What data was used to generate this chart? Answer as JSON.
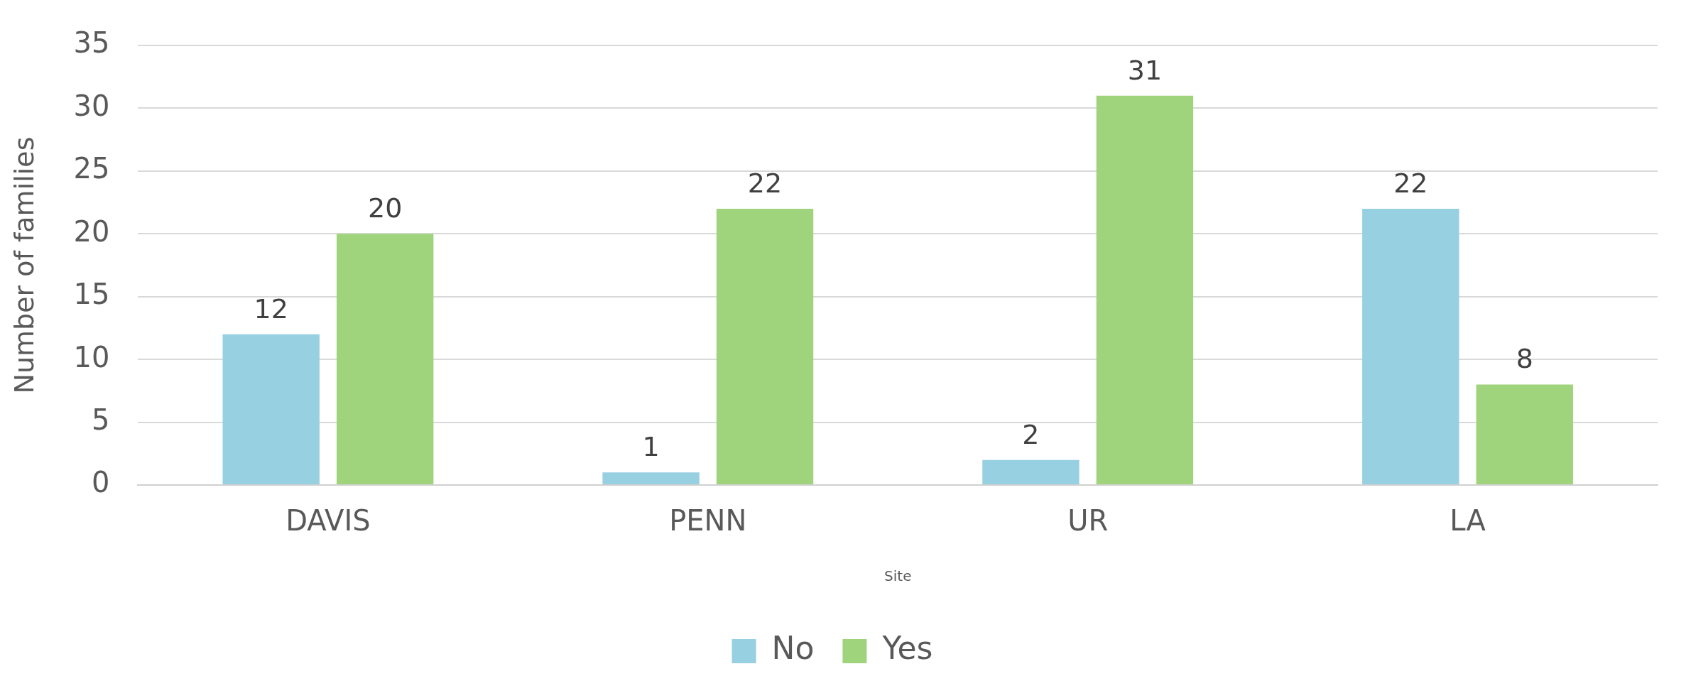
{
  "chart_data": {
    "type": "bar",
    "xlabel": "Site",
    "ylabel": "Number of families",
    "categories": [
      "DAVIS",
      "PENN",
      "UR",
      "LA"
    ],
    "series": [
      {
        "name": "No",
        "color": "#96d0e1",
        "values": [
          12,
          1,
          2,
          22
        ]
      },
      {
        "name": "Yes",
        "color": "#a0d47c",
        "values": [
          20,
          22,
          31,
          8
        ]
      }
    ],
    "ylim": [
      0,
      35
    ],
    "yticks": [
      0,
      5,
      10,
      15,
      20,
      25,
      30,
      35
    ],
    "grid": "y",
    "legend": "bottom",
    "data_labels": true
  }
}
